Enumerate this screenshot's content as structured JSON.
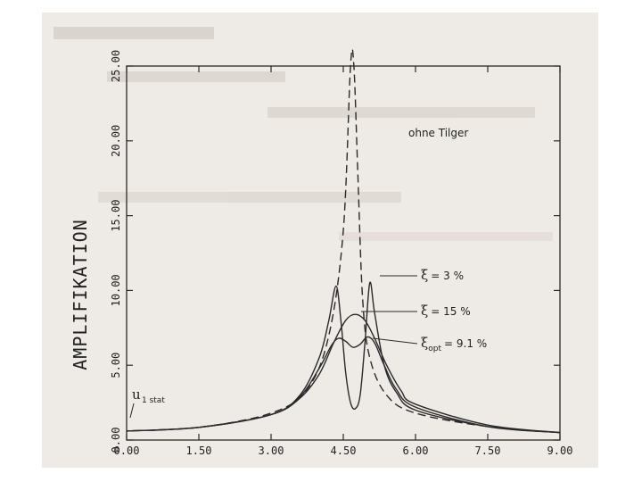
{
  "chart_data": {
    "type": "line",
    "title": "",
    "xlabel": "",
    "ylabel": "AMPLIFIKATION",
    "xlim": [
      0,
      9
    ],
    "ylim": [
      0,
      25
    ],
    "x_ticks": [
      "0.00",
      "1.50",
      "3.00",
      "4.50",
      "6.00",
      "7.50",
      "9.00"
    ],
    "y_ticks": [
      "0.00",
      "5.00",
      "10.00",
      "15.00",
      "20.00",
      "25.00"
    ],
    "static_label": {
      "main": "u",
      "sub": "1 stat"
    },
    "series": [
      {
        "name": "ohne Tilger",
        "style": "dashed",
        "x": [
          0,
          1.5,
          3.0,
          3.75,
          4.2,
          4.5,
          4.65,
          4.72,
          4.8,
          4.9,
          5.05,
          5.4,
          6.0,
          7.5,
          9.0
        ],
        "y": [
          0.6,
          0.85,
          1.8,
          3.4,
          7.0,
          14.0,
          25.0,
          25.0,
          18.0,
          9.5,
          5.5,
          3.0,
          1.8,
          0.9,
          0.5
        ]
      },
      {
        "name": "ξ = 3 %",
        "style": "solid",
        "x": [
          0,
          1.5,
          3.0,
          3.6,
          4.0,
          4.2,
          4.35,
          4.45,
          4.55,
          4.65,
          4.75,
          4.85,
          4.95,
          5.05,
          5.15,
          5.35,
          5.6,
          6.0,
          7.5,
          9.0
        ],
        "y": [
          0.6,
          0.85,
          1.7,
          3.0,
          5.5,
          8.0,
          10.3,
          8.0,
          4.5,
          2.5,
          2.1,
          3.0,
          6.5,
          10.5,
          8.5,
          5.0,
          3.2,
          2.0,
          0.9,
          0.5
        ]
      },
      {
        "name": "ξ = 15 %",
        "style": "solid",
        "x": [
          0,
          1.5,
          3.0,
          3.6,
          4.0,
          4.3,
          4.55,
          4.75,
          4.95,
          5.15,
          5.4,
          5.7,
          6.0,
          7.5,
          9.0
        ],
        "y": [
          0.6,
          0.85,
          1.7,
          2.8,
          4.4,
          6.5,
          8.0,
          8.4,
          8.0,
          6.8,
          5.0,
          3.3,
          2.4,
          1.0,
          0.5
        ]
      },
      {
        "name": "ξ_opt = 9.1 %",
        "style": "solid",
        "x": [
          0,
          1.5,
          3.0,
          3.6,
          4.0,
          4.25,
          4.4,
          4.55,
          4.7,
          4.85,
          5.0,
          5.15,
          5.35,
          5.6,
          6.0,
          7.5,
          9.0
        ],
        "y": [
          0.6,
          0.85,
          1.7,
          2.9,
          4.8,
          6.3,
          6.8,
          6.6,
          6.2,
          6.4,
          6.9,
          6.5,
          5.0,
          3.4,
          2.2,
          0.9,
          0.5
        ]
      }
    ],
    "annotations": [
      {
        "text": "ohne Tilger",
        "series": 0
      },
      {
        "greek": "ξ",
        "rest": "= 3 %",
        "series": 1
      },
      {
        "greek": "ξ",
        "rest": "= 15 %",
        "series": 2
      },
      {
        "greek": "ξ",
        "sub": "opt",
        "rest": "= 9.1 %",
        "series": 3
      }
    ],
    "grid": false,
    "legend": "annotations"
  }
}
